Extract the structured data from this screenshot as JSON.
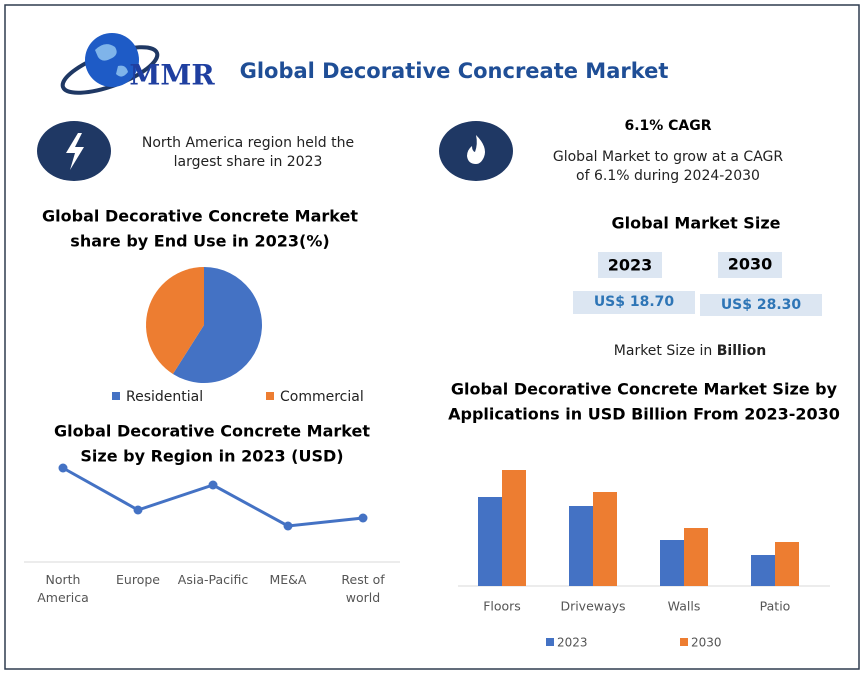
{
  "header": {
    "logo": "MMR",
    "title": "Global Decorative Concreate Market"
  },
  "region_note": [
    "North America region held the",
    "largest share in 2023"
  ],
  "cagr": {
    "title": "6.1% CAGR",
    "text": [
      "Global Market to grow at a CAGR",
      "of 6.1% during 2024-2030"
    ]
  },
  "market_size": {
    "title": "Global Market Size",
    "years": [
      "2023",
      "2030"
    ],
    "values": [
      "US$ 18.70",
      "US$ 28.30"
    ],
    "note": "Market Size in",
    "unit": "Billion"
  },
  "chart_data": [
    {
      "type": "pie",
      "title": [
        "Global Decorative Concrete Market",
        "share by  End Use in 2023(%)"
      ],
      "categories": [
        "Residential",
        "Commercial"
      ],
      "values": [
        59,
        41
      ],
      "colors": [
        "#4472c4",
        "#ed7d31"
      ]
    },
    {
      "type": "line",
      "title": [
        "Global Decorative Concrete Market",
        "Size by Region in 2023 (USD)"
      ],
      "categories": [
        "North America",
        "Europe",
        "Asia-Pacific",
        "ME&A",
        "Rest of world"
      ],
      "values": [
        94,
        52,
        77,
        36,
        44
      ],
      "color": "#4472c4",
      "ylim": [
        0,
        100
      ]
    },
    {
      "type": "bar",
      "title": [
        "Global Decorative Concrete Market Size by",
        "Applications in USD Billion From 2023-2030"
      ],
      "categories": [
        "Floors",
        "Driveways",
        "Walls",
        "Patio"
      ],
      "series": [
        {
          "name": "2023",
          "color": "#4472c4",
          "values": [
            89,
            80,
            46,
            31
          ]
        },
        {
          "name": "2030",
          "color": "#ed7d31",
          "values": [
            116,
            94,
            58,
            44
          ]
        }
      ],
      "ylim": [
        0,
        120
      ]
    }
  ]
}
